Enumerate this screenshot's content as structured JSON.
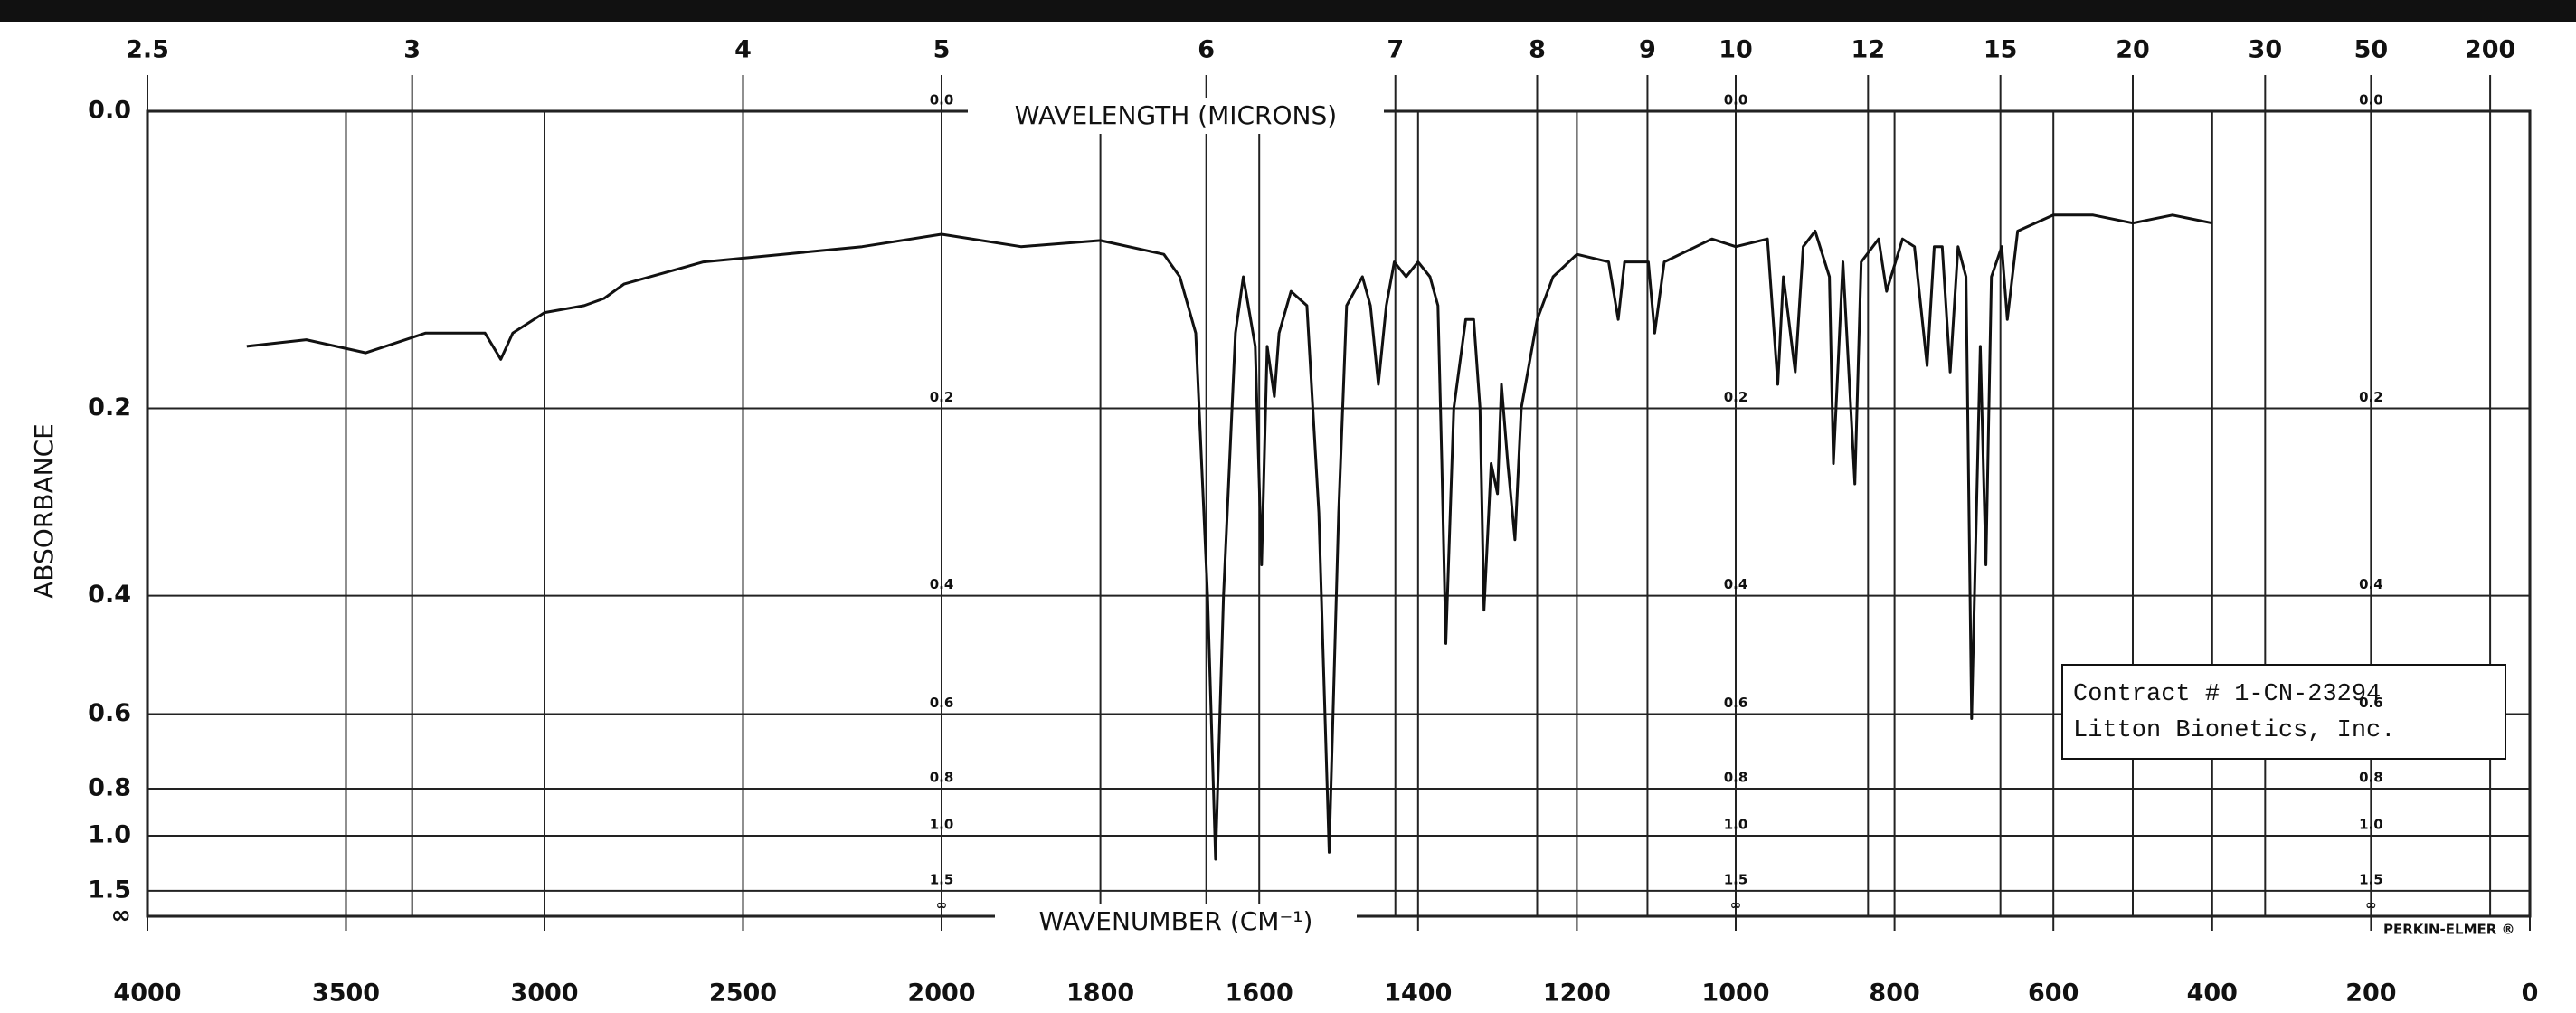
{
  "chart_data": {
    "type": "line",
    "y_label": "ABSORBANCE",
    "x_label": "WAVENUMBER (CM⁻¹)",
    "x2_label": "WAVELENGTH (MICRONS)",
    "note_lines": [
      "Contract # 1-CN-23294",
      "Litton Bionetics, Inc."
    ],
    "brand": "PERKIN-ELMER ®",
    "yscale": "transmittance",
    "xscale_change": 2000,
    "xlim": [
      4000,
      0
    ],
    "xticks": [
      4000,
      3500,
      3000,
      2500,
      2000,
      1800,
      1600,
      1400,
      1200,
      1000,
      800,
      600,
      400,
      200,
      0
    ],
    "x2ticks": [
      2.5,
      3,
      4,
      5,
      6,
      7,
      8,
      9,
      10,
      12,
      15,
      20,
      30,
      50,
      200
    ],
    "ylim": [
      0,
      null
    ],
    "yticks": [
      {
        "value": 0,
        "label": "0.0"
      },
      0.2,
      0.4,
      0.6,
      0.8,
      {
        "value": 1,
        "label": "1.0"
      },
      1.5,
      {
        "value": null,
        "label": "∞"
      }
    ],
    "inner_label_columns": [
      2000,
      1000,
      200
    ],
    "grid": true,
    "color": "#111111",
    "x": [
      3750,
      3600,
      3450,
      3300,
      3150,
      3110,
      3080,
      3000,
      2900,
      2850,
      2800,
      2600,
      2400,
      2200,
      2000,
      1900,
      1800,
      1720,
      1700,
      1680,
      1665,
      1655,
      1645,
      1630,
      1620,
      1605,
      1597,
      1590,
      1581,
      1575,
      1560,
      1540,
      1525,
      1512,
      1500,
      1490,
      1470,
      1460,
      1450,
      1440,
      1430,
      1415,
      1400,
      1385,
      1375,
      1370,
      1365,
      1355,
      1340,
      1330,
      1322,
      1317,
      1308,
      1300,
      1295,
      1287,
      1278,
      1270,
      1250,
      1230,
      1200,
      1160,
      1148,
      1140,
      1110,
      1102,
      1090,
      1030,
      1000,
      960,
      947,
      940,
      925,
      915,
      900,
      882,
      877,
      865,
      850,
      842,
      820,
      810,
      790,
      775,
      759,
      750,
      740,
      730,
      720,
      710,
      703,
      692,
      685,
      678,
      665,
      658,
      645,
      600,
      550,
      500,
      450,
      400
    ],
    "values": [
      0.15,
      0.145,
      0.155,
      0.14,
      0.14,
      0.16,
      0.14,
      0.125,
      0.12,
      0.115,
      0.105,
      0.09,
      0.085,
      0.08,
      0.072,
      0.08,
      0.076,
      0.085,
      0.1,
      0.14,
      0.4,
      1.15,
      0.4,
      0.14,
      0.1,
      0.15,
      0.36,
      0.15,
      0.19,
      0.14,
      0.11,
      0.12,
      0.3,
      1.1,
      0.3,
      0.12,
      0.1,
      0.12,
      0.18,
      0.12,
      0.09,
      0.1,
      0.09,
      0.1,
      0.12,
      0.25,
      0.47,
      0.2,
      0.13,
      0.13,
      0.2,
      0.42,
      0.25,
      0.28,
      0.18,
      0.25,
      0.33,
      0.2,
      0.13,
      0.1,
      0.085,
      0.09,
      0.13,
      0.09,
      0.09,
      0.14,
      0.09,
      0.075,
      0.08,
      0.075,
      0.18,
      0.1,
      0.17,
      0.08,
      0.07,
      0.1,
      0.25,
      0.09,
      0.27,
      0.09,
      0.075,
      0.11,
      0.075,
      0.08,
      0.165,
      0.08,
      0.08,
      0.17,
      0.08,
      0.1,
      0.61,
      0.15,
      0.36,
      0.1,
      0.08,
      0.13,
      0.07,
      0.06,
      0.06,
      0.065,
      0.06,
      0.065
    ]
  }
}
